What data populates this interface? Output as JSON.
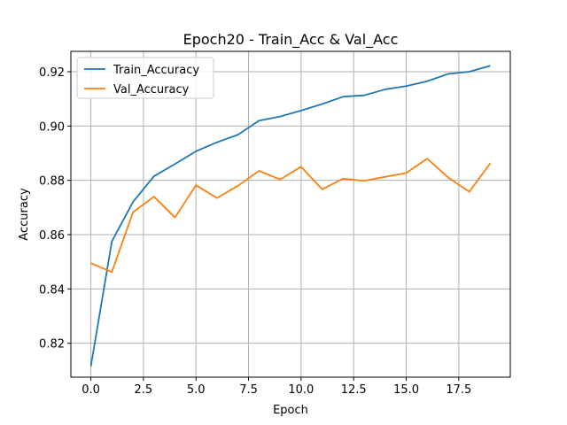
{
  "chart_data": {
    "type": "line",
    "title": "Epoch20 - Train_Acc & Val_Acc",
    "xlabel": "Epoch",
    "ylabel": "Accuracy",
    "xlim": [
      -0.95,
      19.95
    ],
    "ylim": [
      0.8075,
      0.9275
    ],
    "x_ticks": [
      0.0,
      2.5,
      5.0,
      7.5,
      10.0,
      12.5,
      15.0,
      17.5
    ],
    "x_tick_labels": [
      "0.0",
      "2.5",
      "5.0",
      "7.5",
      "10.0",
      "12.5",
      "15.0",
      "17.5"
    ],
    "y_ticks": [
      0.82,
      0.84,
      0.86,
      0.88,
      0.9,
      0.92
    ],
    "y_tick_labels": [
      "0.82",
      "0.84",
      "0.86",
      "0.88",
      "0.90",
      "0.92"
    ],
    "grid": true,
    "legend_position": "upper-left",
    "x": [
      0,
      1,
      2,
      3,
      4,
      5,
      6,
      7,
      8,
      9,
      10,
      11,
      12,
      13,
      14,
      15,
      16,
      17,
      18,
      19
    ],
    "series": [
      {
        "name": "Train_Accuracy",
        "color": "#1f77b4",
        "values": [
          0.8115,
          0.8575,
          0.872,
          0.8815,
          0.886,
          0.8907,
          0.894,
          0.8968,
          0.902,
          0.9035,
          0.9057,
          0.9081,
          0.9108,
          0.9113,
          0.9135,
          0.9147,
          0.9165,
          0.9192,
          0.92,
          0.9222
        ]
      },
      {
        "name": "Val_Accuracy",
        "color": "#ff7f0e",
        "values": [
          0.8495,
          0.8462,
          0.8682,
          0.874,
          0.8663,
          0.8782,
          0.8735,
          0.878,
          0.8835,
          0.8803,
          0.885,
          0.8767,
          0.8806,
          0.8798,
          0.8813,
          0.8827,
          0.888,
          0.881,
          0.8758,
          0.8863
        ]
      }
    ]
  }
}
